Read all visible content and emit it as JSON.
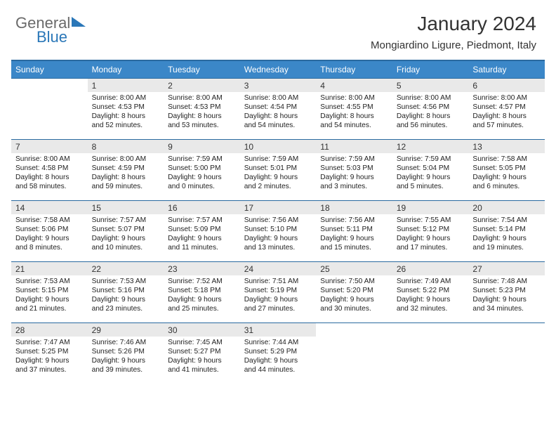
{
  "logo": {
    "word1": "General",
    "word2": "Blue"
  },
  "title": "January 2024",
  "location": "Mongiardino Ligure, Piedmont, Italy",
  "theme": {
    "header_bg": "#3b87c8",
    "header_border": "#2a6aa0",
    "daynum_bg": "#e9e9e9",
    "text": "#333333",
    "logo_gray": "#6a6a6a",
    "logo_blue": "#2a77b8",
    "background": "#ffffff"
  },
  "day_names": [
    "Sunday",
    "Monday",
    "Tuesday",
    "Wednesday",
    "Thursday",
    "Friday",
    "Saturday"
  ],
  "weeks": [
    [
      {
        "n": "",
        "l1": "",
        "l2": "",
        "l3": "",
        "l4": ""
      },
      {
        "n": "1",
        "l1": "Sunrise: 8:00 AM",
        "l2": "Sunset: 4:53 PM",
        "l3": "Daylight: 8 hours",
        "l4": "and 52 minutes."
      },
      {
        "n": "2",
        "l1": "Sunrise: 8:00 AM",
        "l2": "Sunset: 4:53 PM",
        "l3": "Daylight: 8 hours",
        "l4": "and 53 minutes."
      },
      {
        "n": "3",
        "l1": "Sunrise: 8:00 AM",
        "l2": "Sunset: 4:54 PM",
        "l3": "Daylight: 8 hours",
        "l4": "and 54 minutes."
      },
      {
        "n": "4",
        "l1": "Sunrise: 8:00 AM",
        "l2": "Sunset: 4:55 PM",
        "l3": "Daylight: 8 hours",
        "l4": "and 54 minutes."
      },
      {
        "n": "5",
        "l1": "Sunrise: 8:00 AM",
        "l2": "Sunset: 4:56 PM",
        "l3": "Daylight: 8 hours",
        "l4": "and 56 minutes."
      },
      {
        "n": "6",
        "l1": "Sunrise: 8:00 AM",
        "l2": "Sunset: 4:57 PM",
        "l3": "Daylight: 8 hours",
        "l4": "and 57 minutes."
      }
    ],
    [
      {
        "n": "7",
        "l1": "Sunrise: 8:00 AM",
        "l2": "Sunset: 4:58 PM",
        "l3": "Daylight: 8 hours",
        "l4": "and 58 minutes."
      },
      {
        "n": "8",
        "l1": "Sunrise: 8:00 AM",
        "l2": "Sunset: 4:59 PM",
        "l3": "Daylight: 8 hours",
        "l4": "and 59 minutes."
      },
      {
        "n": "9",
        "l1": "Sunrise: 7:59 AM",
        "l2": "Sunset: 5:00 PM",
        "l3": "Daylight: 9 hours",
        "l4": "and 0 minutes."
      },
      {
        "n": "10",
        "l1": "Sunrise: 7:59 AM",
        "l2": "Sunset: 5:01 PM",
        "l3": "Daylight: 9 hours",
        "l4": "and 2 minutes."
      },
      {
        "n": "11",
        "l1": "Sunrise: 7:59 AM",
        "l2": "Sunset: 5:03 PM",
        "l3": "Daylight: 9 hours",
        "l4": "and 3 minutes."
      },
      {
        "n": "12",
        "l1": "Sunrise: 7:59 AM",
        "l2": "Sunset: 5:04 PM",
        "l3": "Daylight: 9 hours",
        "l4": "and 5 minutes."
      },
      {
        "n": "13",
        "l1": "Sunrise: 7:58 AM",
        "l2": "Sunset: 5:05 PM",
        "l3": "Daylight: 9 hours",
        "l4": "and 6 minutes."
      }
    ],
    [
      {
        "n": "14",
        "l1": "Sunrise: 7:58 AM",
        "l2": "Sunset: 5:06 PM",
        "l3": "Daylight: 9 hours",
        "l4": "and 8 minutes."
      },
      {
        "n": "15",
        "l1": "Sunrise: 7:57 AM",
        "l2": "Sunset: 5:07 PM",
        "l3": "Daylight: 9 hours",
        "l4": "and 10 minutes."
      },
      {
        "n": "16",
        "l1": "Sunrise: 7:57 AM",
        "l2": "Sunset: 5:09 PM",
        "l3": "Daylight: 9 hours",
        "l4": "and 11 minutes."
      },
      {
        "n": "17",
        "l1": "Sunrise: 7:56 AM",
        "l2": "Sunset: 5:10 PM",
        "l3": "Daylight: 9 hours",
        "l4": "and 13 minutes."
      },
      {
        "n": "18",
        "l1": "Sunrise: 7:56 AM",
        "l2": "Sunset: 5:11 PM",
        "l3": "Daylight: 9 hours",
        "l4": "and 15 minutes."
      },
      {
        "n": "19",
        "l1": "Sunrise: 7:55 AM",
        "l2": "Sunset: 5:12 PM",
        "l3": "Daylight: 9 hours",
        "l4": "and 17 minutes."
      },
      {
        "n": "20",
        "l1": "Sunrise: 7:54 AM",
        "l2": "Sunset: 5:14 PM",
        "l3": "Daylight: 9 hours",
        "l4": "and 19 minutes."
      }
    ],
    [
      {
        "n": "21",
        "l1": "Sunrise: 7:53 AM",
        "l2": "Sunset: 5:15 PM",
        "l3": "Daylight: 9 hours",
        "l4": "and 21 minutes."
      },
      {
        "n": "22",
        "l1": "Sunrise: 7:53 AM",
        "l2": "Sunset: 5:16 PM",
        "l3": "Daylight: 9 hours",
        "l4": "and 23 minutes."
      },
      {
        "n": "23",
        "l1": "Sunrise: 7:52 AM",
        "l2": "Sunset: 5:18 PM",
        "l3": "Daylight: 9 hours",
        "l4": "and 25 minutes."
      },
      {
        "n": "24",
        "l1": "Sunrise: 7:51 AM",
        "l2": "Sunset: 5:19 PM",
        "l3": "Daylight: 9 hours",
        "l4": "and 27 minutes."
      },
      {
        "n": "25",
        "l1": "Sunrise: 7:50 AM",
        "l2": "Sunset: 5:20 PM",
        "l3": "Daylight: 9 hours",
        "l4": "and 30 minutes."
      },
      {
        "n": "26",
        "l1": "Sunrise: 7:49 AM",
        "l2": "Sunset: 5:22 PM",
        "l3": "Daylight: 9 hours",
        "l4": "and 32 minutes."
      },
      {
        "n": "27",
        "l1": "Sunrise: 7:48 AM",
        "l2": "Sunset: 5:23 PM",
        "l3": "Daylight: 9 hours",
        "l4": "and 34 minutes."
      }
    ],
    [
      {
        "n": "28",
        "l1": "Sunrise: 7:47 AM",
        "l2": "Sunset: 5:25 PM",
        "l3": "Daylight: 9 hours",
        "l4": "and 37 minutes."
      },
      {
        "n": "29",
        "l1": "Sunrise: 7:46 AM",
        "l2": "Sunset: 5:26 PM",
        "l3": "Daylight: 9 hours",
        "l4": "and 39 minutes."
      },
      {
        "n": "30",
        "l1": "Sunrise: 7:45 AM",
        "l2": "Sunset: 5:27 PM",
        "l3": "Daylight: 9 hours",
        "l4": "and 41 minutes."
      },
      {
        "n": "31",
        "l1": "Sunrise: 7:44 AM",
        "l2": "Sunset: 5:29 PM",
        "l3": "Daylight: 9 hours",
        "l4": "and 44 minutes."
      },
      {
        "n": "",
        "l1": "",
        "l2": "",
        "l3": "",
        "l4": ""
      },
      {
        "n": "",
        "l1": "",
        "l2": "",
        "l3": "",
        "l4": ""
      },
      {
        "n": "",
        "l1": "",
        "l2": "",
        "l3": "",
        "l4": ""
      }
    ]
  ]
}
